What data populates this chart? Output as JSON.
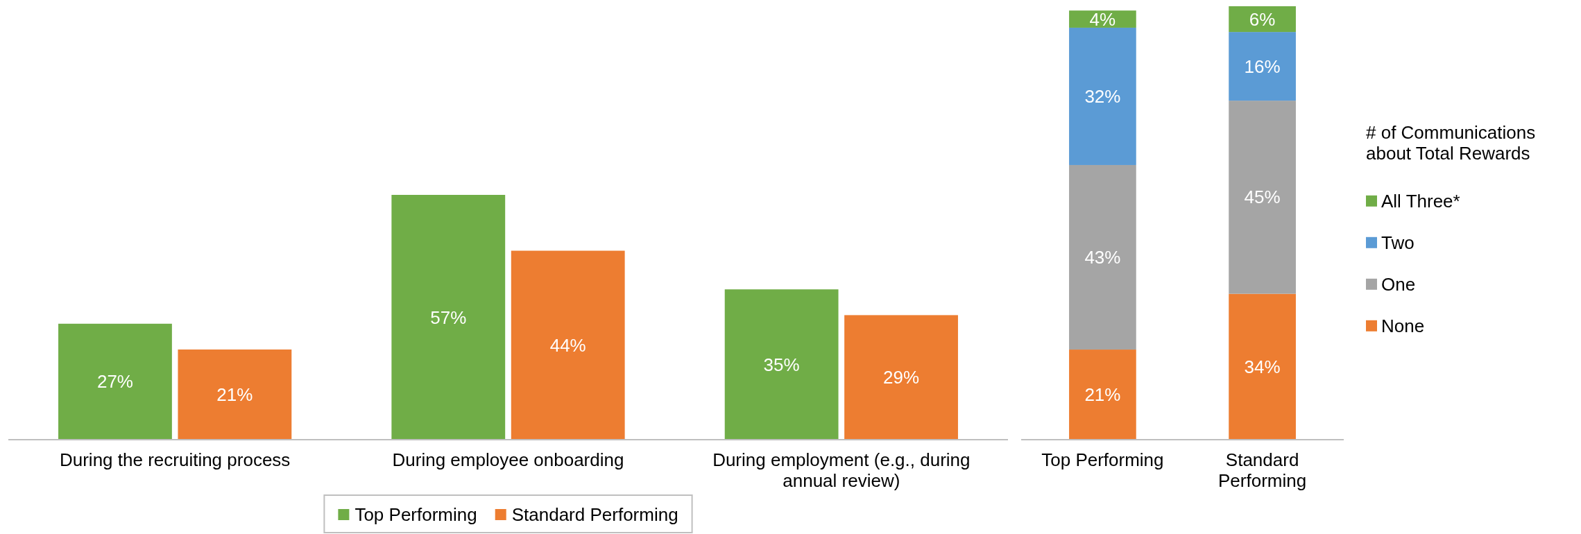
{
  "chart_data": [
    {
      "type": "bar",
      "categories": [
        "During the recruiting process",
        "During employee onboarding",
        "During employment (e.g., during annual review)"
      ],
      "series": [
        {
          "name": "Top Performing",
          "color": "#70ad47",
          "values": [
            27,
            57,
            35
          ],
          "value_labels": [
            "27%",
            "57%",
            "35%"
          ]
        },
        {
          "name": "Standard Performing",
          "color": "#ed7d31",
          "values": [
            21,
            44,
            29
          ],
          "value_labels": [
            "21%",
            "44%",
            "29%"
          ]
        }
      ],
      "tick_labels": "x",
      "legend": "bottom"
    },
    {
      "type": "bar",
      "stacked": true,
      "categories": [
        "Top Performing",
        "Standard Performing"
      ],
      "legend_title": "# of Communications about Total Rewards",
      "series": [
        {
          "name": "None",
          "color": "#ed7d31",
          "values": [
            21,
            34
          ],
          "value_labels": [
            "21%",
            "34%"
          ]
        },
        {
          "name": "One",
          "color": "#a5a5a5",
          "values": [
            43,
            45
          ],
          "value_labels": [
            "43%",
            "45%"
          ]
        },
        {
          "name": "Two",
          "color": "#5b9bd5",
          "values": [
            32,
            16
          ],
          "value_labels": [
            "32%",
            "16%"
          ]
        },
        {
          "name": "All Three*",
          "color": "#70ad47",
          "values": [
            4,
            6
          ],
          "value_labels": [
            "4%",
            "6%"
          ]
        }
      ],
      "tick_labels": "x",
      "legend": "right"
    }
  ]
}
